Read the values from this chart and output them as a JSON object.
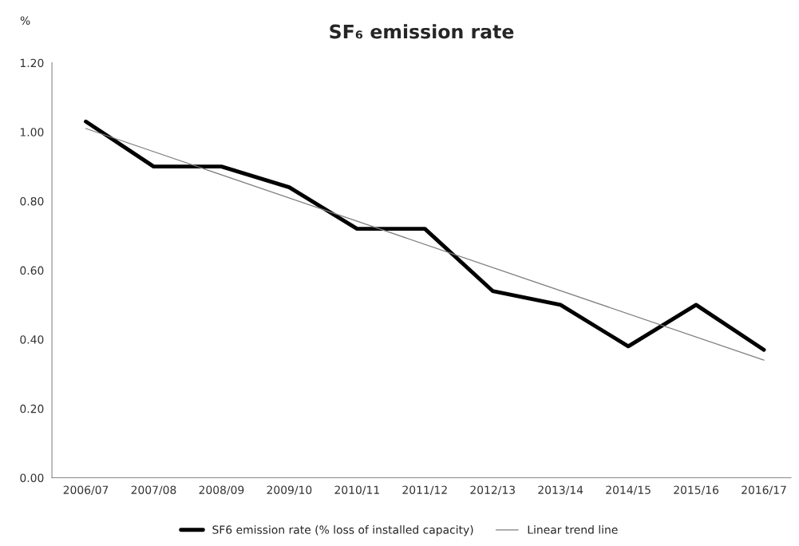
{
  "chart_data": {
    "type": "line",
    "title": "SF₆ emission rate",
    "ylabel": "%",
    "categories": [
      "2006/07",
      "2007/08",
      "2008/09",
      "2009/10",
      "2010/11",
      "2011/12",
      "2012/13",
      "2013/14",
      "2014/15",
      "2015/16",
      "2016/17"
    ],
    "series": [
      {
        "name": "SF6 emission rate (% loss of installed capacity)",
        "color": "#000000",
        "values": [
          1.03,
          0.9,
          0.9,
          0.84,
          0.72,
          0.72,
          0.54,
          0.5,
          0.38,
          0.5,
          0.37
        ]
      },
      {
        "name": "Linear trend line",
        "type": "line",
        "color": "#7f7f7f",
        "x": [
          "2006/07",
          "2016/17"
        ],
        "values": [
          1.01,
          0.34
        ]
      }
    ],
    "ylim": [
      0,
      1.2
    ],
    "yticks": [
      {
        "value": 0,
        "label": "0.00"
      },
      {
        "value": 0.2,
        "label": "0.20"
      },
      {
        "value": 0.4,
        "label": "0.40"
      },
      {
        "value": 0.6,
        "label": "0.60"
      },
      {
        "value": 0.8,
        "label": "0.80"
      },
      {
        "value": 1.0,
        "label": "1.00"
      },
      {
        "value": 1.2,
        "label": "1.20"
      }
    ],
    "grid": false,
    "legend": "bottom",
    "marker": "none",
    "line_style": "solid"
  }
}
